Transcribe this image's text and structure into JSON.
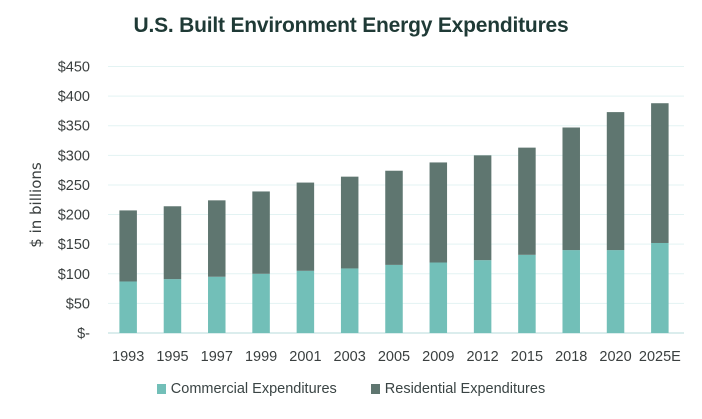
{
  "chart_data": {
    "type": "bar",
    "stacked": true,
    "title": "U.S. Built Environment Energy Expenditures",
    "xlabel": "",
    "ylabel": "$ in billions",
    "ylim": [
      0,
      450
    ],
    "yticks": [
      0,
      50,
      100,
      150,
      200,
      250,
      300,
      350,
      400,
      450
    ],
    "ytick_labels": [
      "$-",
      "$50",
      "$100",
      "$150",
      "$200",
      "$250",
      "$300",
      "$350",
      "$400",
      "$450"
    ],
    "grid": true,
    "legend_position": "bottom",
    "categories": [
      "1993",
      "1995",
      "1997",
      "1999",
      "2001",
      "2003",
      "2005",
      "2009",
      "2012",
      "2015",
      "2018",
      "2020",
      "2025E"
    ],
    "series": [
      {
        "name": "Commercial Expenditures",
        "color": "#72bfb8",
        "values": [
          87,
          91,
          95,
          100,
          105,
          109,
          115,
          119,
          123,
          132,
          140,
          140,
          152
        ]
      },
      {
        "name": "Residential Expenditures",
        "color": "#5f7670",
        "values": [
          120,
          123,
          129,
          139,
          149,
          155,
          159,
          169,
          177,
          181,
          207,
          233,
          236
        ]
      }
    ]
  },
  "colors": {
    "title": "#1f3a36",
    "gridline": "#e3f3f3",
    "axis": "#cfe7e7"
  }
}
